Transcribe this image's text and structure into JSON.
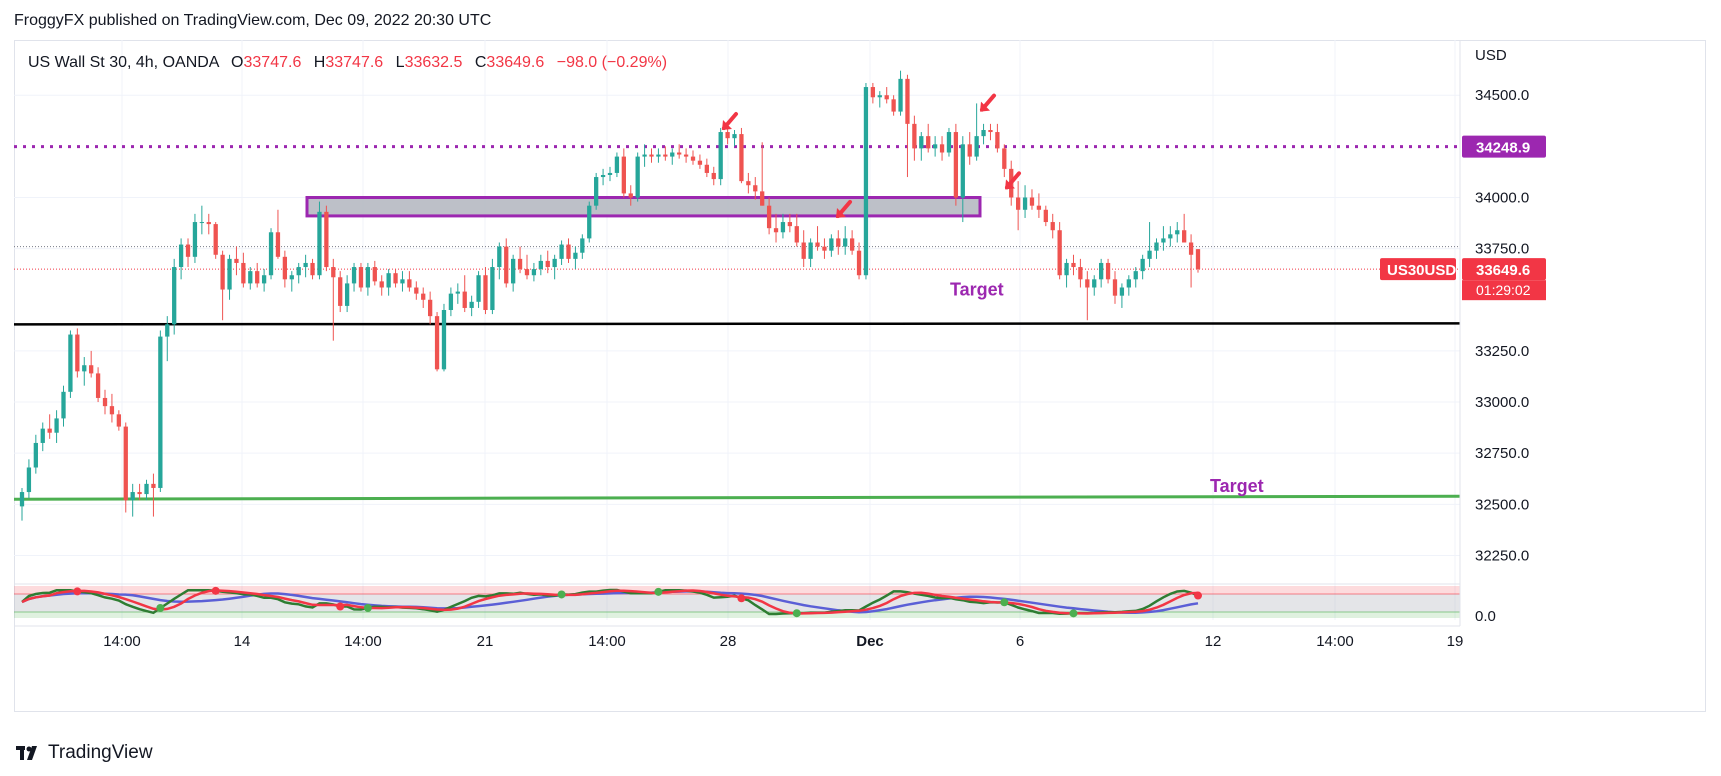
{
  "publisher_line": "FroggyFX published on TradingView.com, Dec 09, 2022 20:30 UTC",
  "brand": "TradingView",
  "legend": {
    "symbol": "US Wall St 30, 4h, OANDA",
    "o_label": "O",
    "o_value": "33747.6",
    "h_label": "H",
    "h_value": "33747.6",
    "l_label": "L",
    "l_value": "33632.5",
    "c_label": "C",
    "c_value": "33649.6",
    "change": "−98.0 (−0.29%)"
  },
  "colors": {
    "up": "#26a69a",
    "down": "#ef5350",
    "level_purple": "#9c27b0",
    "support_black": "#000000",
    "support_green": "#4caf50",
    "zone_fill": "#b2b5be",
    "arrow": "#f23645",
    "price_tag": "#f23645"
  },
  "chart_data": {
    "type": "candlestick",
    "symbol": "US30USD",
    "currency_label": "USD",
    "y_ticks": [
      "34500.0",
      "34000.0",
      "33750.0",
      "33250.0",
      "33000.0",
      "32750.0",
      "32500.0",
      "32250.0"
    ],
    "y_tick_values": [
      34500,
      34000,
      33750,
      33250,
      33000,
      32750,
      32500,
      32250
    ],
    "x_ticks": [
      "14:00",
      "14",
      "14:00",
      "21",
      "14:00",
      "28",
      "Dec",
      "6",
      "12",
      "14:00",
      "19"
    ],
    "ylim": [
      32130,
      34770
    ],
    "levels": {
      "resistance_dotted": 34248.9,
      "resistance_label": "34248.9",
      "support_black": 33380,
      "support_green": 32525,
      "zone_top": 34000,
      "zone_bottom": 33910,
      "last_price_label": "33649.6",
      "countdown": "01:29:02",
      "symbol_tag": "US30USD",
      "reference_dotted": 33760
    },
    "annotations": [
      "Target",
      "Target"
    ],
    "candles": [
      [
        32490,
        32580,
        32420,
        32560
      ],
      [
        32560,
        32720,
        32530,
        32680
      ],
      [
        32680,
        32840,
        32650,
        32800
      ],
      [
        32800,
        32900,
        32760,
        32870
      ],
      [
        32870,
        32940,
        32820,
        32850
      ],
      [
        32850,
        32960,
        32800,
        32920
      ],
      [
        32920,
        33080,
        32880,
        33050
      ],
      [
        33050,
        33350,
        33020,
        33330
      ],
      [
        33330,
        33360,
        33120,
        33150
      ],
      [
        33150,
        33220,
        33080,
        33180
      ],
      [
        33180,
        33250,
        33120,
        33140
      ],
      [
        33140,
        33170,
        33000,
        33020
      ],
      [
        33020,
        33060,
        32940,
        32980
      ],
      [
        32980,
        33040,
        32900,
        32940
      ],
      [
        32940,
        32960,
        32860,
        32880
      ],
      [
        32880,
        32900,
        32460,
        32520
      ],
      [
        32520,
        32600,
        32440,
        32560
      ],
      [
        32560,
        32600,
        32520,
        32550
      ],
      [
        32550,
        32620,
        32520,
        32600
      ],
      [
        32600,
        32650,
        32440,
        32580
      ],
      [
        32580,
        33350,
        32560,
        33320
      ],
      [
        33320,
        33420,
        33200,
        33380
      ],
      [
        33380,
        33700,
        33330,
        33660
      ],
      [
        33660,
        33800,
        33600,
        33770
      ],
      [
        33770,
        33800,
        33660,
        33710
      ],
      [
        33710,
        33920,
        33680,
        33880
      ],
      [
        33880,
        33960,
        33820,
        33880
      ],
      [
        33880,
        33920,
        33820,
        33870
      ],
      [
        33870,
        33880,
        33700,
        33720
      ],
      [
        33720,
        33740,
        33400,
        33550
      ],
      [
        33550,
        33720,
        33500,
        33700
      ],
      [
        33700,
        33760,
        33620,
        33680
      ],
      [
        33680,
        33730,
        33560,
        33580
      ],
      [
        33580,
        33660,
        33550,
        33640
      ],
      [
        33640,
        33680,
        33560,
        33580
      ],
      [
        33580,
        33650,
        33540,
        33620
      ],
      [
        33620,
        33850,
        33600,
        33830
      ],
      [
        33830,
        33940,
        33700,
        33710
      ],
      [
        33710,
        33740,
        33560,
        33600
      ],
      [
        33600,
        33640,
        33540,
        33620
      ],
      [
        33620,
        33680,
        33580,
        33660
      ],
      [
        33660,
        33720,
        33610,
        33680
      ],
      [
        33680,
        33700,
        33600,
        33620
      ],
      [
        33620,
        33980,
        33600,
        33930
      ],
      [
        33930,
        33960,
        33640,
        33660
      ],
      [
        33660,
        33700,
        33300,
        33610
      ],
      [
        33610,
        33640,
        33440,
        33470
      ],
      [
        33470,
        33620,
        33440,
        33580
      ],
      [
        33580,
        33680,
        33540,
        33660
      ],
      [
        33660,
        33680,
        33540,
        33560
      ],
      [
        33560,
        33680,
        33520,
        33660
      ],
      [
        33660,
        33690,
        33570,
        33590
      ],
      [
        33590,
        33620,
        33520,
        33560
      ],
      [
        33560,
        33650,
        33520,
        33630
      ],
      [
        33630,
        33650,
        33560,
        33580
      ],
      [
        33580,
        33640,
        33540,
        33600
      ],
      [
        33600,
        33640,
        33540,
        33560
      ],
      [
        33560,
        33590,
        33500,
        33530
      ],
      [
        33530,
        33560,
        33460,
        33500
      ],
      [
        33500,
        33540,
        33380,
        33420
      ],
      [
        33420,
        33440,
        33150,
        33160
      ],
      [
        33160,
        33480,
        33150,
        33450
      ],
      [
        33450,
        33560,
        33420,
        33530
      ],
      [
        33530,
        33580,
        33480,
        33540
      ],
      [
        33540,
        33620,
        33440,
        33460
      ],
      [
        33460,
        33520,
        33420,
        33490
      ],
      [
        33490,
        33640,
        33460,
        33620
      ],
      [
        33620,
        33660,
        33430,
        33450
      ],
      [
        33450,
        33700,
        33430,
        33660
      ],
      [
        33660,
        33780,
        33600,
        33760
      ],
      [
        33760,
        33800,
        33560,
        33580
      ],
      [
        33580,
        33720,
        33540,
        33700
      ],
      [
        33700,
        33760,
        33630,
        33650
      ],
      [
        33650,
        33720,
        33600,
        33620
      ],
      [
        33620,
        33680,
        33590,
        33650
      ],
      [
        33650,
        33720,
        33620,
        33690
      ],
      [
        33690,
        33740,
        33630,
        33660
      ],
      [
        33660,
        33720,
        33600,
        33700
      ],
      [
        33700,
        33790,
        33670,
        33770
      ],
      [
        33770,
        33800,
        33680,
        33700
      ],
      [
        33700,
        33760,
        33650,
        33730
      ],
      [
        33730,
        33820,
        33700,
        33800
      ],
      [
        33800,
        33980,
        33780,
        33960
      ],
      [
        33960,
        34120,
        33940,
        34100
      ],
      [
        34100,
        34140,
        34060,
        34110
      ],
      [
        34110,
        34150,
        34080,
        34120
      ],
      [
        34120,
        34220,
        34100,
        34200
      ],
      [
        34200,
        34240,
        34000,
        34020
      ],
      [
        34020,
        34060,
        33960,
        34000
      ],
      [
        34000,
        34220,
        33980,
        34200
      ],
      [
        34200,
        34260,
        34150,
        34210
      ],
      [
        34210,
        34240,
        34170,
        34200
      ],
      [
        34200,
        34240,
        34170,
        34210
      ],
      [
        34210,
        34250,
        34180,
        34200
      ],
      [
        34200,
        34240,
        34160,
        34220
      ],
      [
        34220,
        34260,
        34190,
        34210
      ],
      [
        34210,
        34240,
        34170,
        34200
      ],
      [
        34200,
        34230,
        34160,
        34180
      ],
      [
        34180,
        34210,
        34140,
        34160
      ],
      [
        34160,
        34190,
        34100,
        34120
      ],
      [
        34120,
        34150,
        34060,
        34090
      ],
      [
        34090,
        34340,
        34060,
        34320
      ],
      [
        34320,
        34360,
        34260,
        34290
      ],
      [
        34290,
        34330,
        34250,
        34310
      ],
      [
        34310,
        34340,
        34070,
        34080
      ],
      [
        34080,
        34120,
        34020,
        34060
      ],
      [
        34060,
        34100,
        33990,
        34030
      ],
      [
        34030,
        34270,
        33960,
        33960
      ],
      [
        33960,
        34000,
        33820,
        33850
      ],
      [
        33850,
        33920,
        33780,
        33830
      ],
      [
        33830,
        33920,
        33800,
        33880
      ],
      [
        33880,
        33920,
        33830,
        33860
      ],
      [
        33860,
        33920,
        33760,
        33780
      ],
      [
        33780,
        33840,
        33660,
        33700
      ],
      [
        33700,
        33800,
        33660,
        33780
      ],
      [
        33780,
        33860,
        33740,
        33760
      ],
      [
        33760,
        33800,
        33700,
        33740
      ],
      [
        33740,
        33820,
        33710,
        33800
      ],
      [
        33800,
        33840,
        33720,
        33760
      ],
      [
        33760,
        33860,
        33720,
        33800
      ],
      [
        33800,
        33840,
        33720,
        33740
      ],
      [
        33740,
        33780,
        33600,
        33620
      ],
      [
        33620,
        34560,
        33600,
        34540
      ],
      [
        34540,
        34560,
        34460,
        34490
      ],
      [
        34490,
        34520,
        34440,
        34500
      ],
      [
        34500,
        34540,
        34460,
        34480
      ],
      [
        34480,
        34500,
        34400,
        34420
      ],
      [
        34420,
        34620,
        34400,
        34580
      ],
      [
        34580,
        34600,
        34100,
        34360
      ],
      [
        34360,
        34400,
        34180,
        34240
      ],
      [
        34240,
        34320,
        34180,
        34300
      ],
      [
        34300,
        34360,
        34220,
        34240
      ],
      [
        34240,
        34300,
        34200,
        34260
      ],
      [
        34260,
        34300,
        34180,
        34220
      ],
      [
        34220,
        34340,
        34200,
        34320
      ],
      [
        34320,
        34360,
        33960,
        34000
      ],
      [
        34000,
        34300,
        33880,
        34260
      ],
      [
        34260,
        34320,
        34160,
        34200
      ],
      [
        34200,
        34460,
        34180,
        34300
      ],
      [
        34300,
        34360,
        34260,
        34330
      ],
      [
        34330,
        34360,
        34280,
        34320
      ],
      [
        34320,
        34360,
        34220,
        34240
      ],
      [
        34240,
        34260,
        34100,
        34140
      ],
      [
        34140,
        34180,
        33960,
        34000
      ],
      [
        34000,
        34080,
        33840,
        33940
      ],
      [
        33940,
        34060,
        33900,
        34000
      ],
      [
        34000,
        34040,
        33940,
        33960
      ],
      [
        33960,
        34020,
        33900,
        33940
      ],
      [
        33940,
        33960,
        33860,
        33880
      ],
      [
        33880,
        33920,
        33800,
        33840
      ],
      [
        33840,
        33880,
        33600,
        33620
      ],
      [
        33620,
        33700,
        33560,
        33680
      ],
      [
        33680,
        33720,
        33620,
        33660
      ],
      [
        33660,
        33700,
        33560,
        33600
      ],
      [
        33600,
        33640,
        33400,
        33560
      ],
      [
        33560,
        33620,
        33520,
        33600
      ],
      [
        33600,
        33700,
        33560,
        33680
      ],
      [
        33680,
        33700,
        33580,
        33600
      ],
      [
        33600,
        33640,
        33480,
        33520
      ],
      [
        33520,
        33580,
        33460,
        33560
      ],
      [
        33560,
        33620,
        33520,
        33600
      ],
      [
        33600,
        33660,
        33560,
        33640
      ],
      [
        33640,
        33720,
        33600,
        33700
      ],
      [
        33700,
        33880,
        33660,
        33740
      ],
      [
        33740,
        33800,
        33700,
        33780
      ],
      [
        33780,
        33860,
        33740,
        33800
      ],
      [
        33800,
        33860,
        33760,
        33820
      ],
      [
        33820,
        33880,
        33780,
        33840
      ],
      [
        33840,
        33920,
        33780,
        33780
      ],
      [
        33780,
        33820,
        33560,
        33720
      ],
      [
        33747.6,
        33747.6,
        33632.5,
        33649.6
      ]
    ],
    "oscillator": {
      "lines": [
        "fast-green",
        "slow-red",
        "signal-blue"
      ],
      "zero_label": "0.0"
    }
  }
}
